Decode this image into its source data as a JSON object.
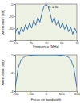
{
  "chart_data": [
    {
      "type": "line",
      "x_label": "Frequency (MHz)",
      "y_label": "Attenuation (dB)",
      "annotation": "fc = 40",
      "x": [
        10,
        12,
        14,
        16,
        18,
        20,
        22,
        24,
        26,
        28,
        30,
        32,
        34,
        36,
        38,
        40,
        42,
        44,
        46,
        48,
        50,
        52,
        54,
        56,
        58,
        60,
        62,
        64,
        66,
        68,
        70
      ],
      "values": [
        -48,
        -40,
        -50,
        -38,
        -46,
        -34,
        -42,
        -31,
        -40,
        -27,
        -35,
        -22,
        -30,
        -15,
        -4,
        0,
        -4,
        -15,
        -30,
        -22,
        -35,
        -27,
        -40,
        -31,
        -42,
        -34,
        -46,
        -38,
        -50,
        -40,
        -48
      ],
      "xlim": [
        10,
        70
      ],
      "ylim": [
        -60,
        0
      ],
      "xticks": [
        10,
        25,
        40,
        55,
        70
      ],
      "yticks": [
        -60,
        -40,
        -20,
        0
      ],
      "color": "#1f5fa0"
    },
    {
      "type": "line",
      "x_label": "Focus on bandwidth",
      "y_label": "Attenuation (dB)",
      "x": [
        -200,
        -180,
        -160,
        -140,
        -120,
        -100,
        -80,
        -60,
        -40,
        -20,
        0,
        20,
        40,
        60,
        80,
        100,
        120,
        140,
        160,
        180,
        200
      ],
      "values": [
        -3.6,
        -1.4,
        -0.5,
        -0.2,
        -0.1,
        -0.05,
        -0.02,
        0,
        0,
        0,
        0,
        0,
        0,
        0,
        -0.02,
        -0.05,
        -0.1,
        -0.2,
        -0.5,
        -1.4,
        -3.6
      ],
      "xlim": [
        -200,
        200
      ],
      "ylim": [
        -4,
        0
      ],
      "xticks": [
        -200,
        -100,
        0,
        100,
        200
      ],
      "yticks": [
        -4,
        -2,
        0
      ],
      "color": "#1f5fa0"
    }
  ]
}
